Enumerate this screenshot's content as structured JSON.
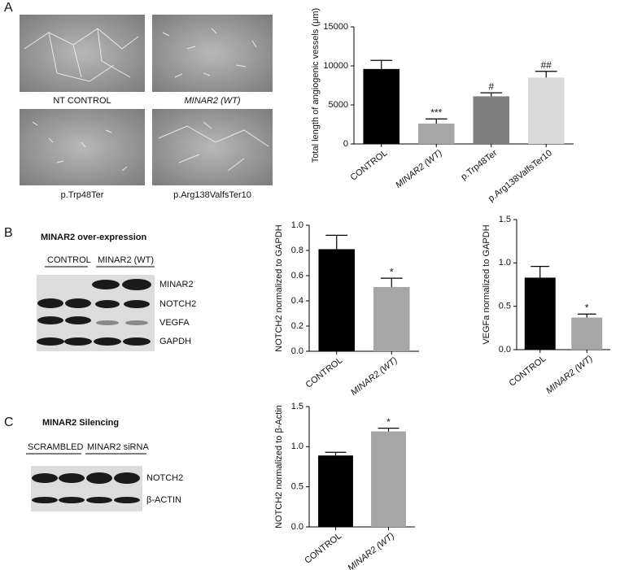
{
  "panels": [
    "A",
    "B",
    "C"
  ],
  "images": [
    "NT CONTROL",
    "MINAR2 (WT)",
    "p.Trp48Ter",
    "p.Arg138ValfsTer10"
  ],
  "blot_b": {
    "title": "MINAR2 over-expression",
    "groups": [
      "CONTROL",
      "MINAR2 (WT)"
    ],
    "rows": [
      "MINAR2",
      "NOTCH2",
      "VEGFA",
      "GAPDH"
    ]
  },
  "blot_c": {
    "title": "MINAR2 Silencing",
    "groups": [
      "SCRAMBLED",
      "MINAR2 siRNA"
    ],
    "rows": [
      "NOTCH2",
      "β-ACTIN"
    ]
  },
  "chart_data": [
    {
      "type": "bar",
      "ylabel": "Total length of angiogenic vessels (μm)",
      "categories": [
        "CONTROL",
        "MINAR2 (WT)",
        "p.Trp48Ter",
        "p.Arg138ValfsTer10"
      ],
      "values": [
        9600,
        2600,
        6100,
        8500
      ],
      "errors": [
        1100,
        600,
        450,
        800
      ],
      "colors": [
        "#000000",
        "#a6a6a6",
        "#7f7f7f",
        "#d9d9d9"
      ],
      "annotations": [
        null,
        "***",
        "#",
        "##"
      ],
      "ylim": [
        0,
        15000
      ],
      "yticks": [
        0,
        5000,
        10000,
        15000
      ]
    },
    {
      "type": "bar",
      "ylabel": "NOTCH2 normalized to GAPDH",
      "categories": [
        "CONTROL",
        "MINAR2 (WT)"
      ],
      "values": [
        0.81,
        0.51
      ],
      "errors": [
        0.11,
        0.07
      ],
      "colors": [
        "#000000",
        "#a6a6a6"
      ],
      "annotations": [
        null,
        "*"
      ],
      "ylim": [
        0,
        1.0
      ],
      "yticks": [
        {
          "value": 0,
          "label": "0.0"
        },
        0.2,
        0.4,
        0.6,
        0.8,
        {
          "value": 1,
          "label": "1.0"
        }
      ]
    },
    {
      "type": "bar",
      "ylabel": "VEGFa normalized to GAPDH",
      "categories": [
        "CONTROL",
        "MINAR2 (WT)"
      ],
      "values": [
        0.83,
        0.37
      ],
      "errors": [
        0.13,
        0.04
      ],
      "colors": [
        "#000000",
        "#a6a6a6"
      ],
      "annotations": [
        null,
        "*"
      ],
      "ylim": [
        0,
        1.5
      ],
      "yticks": [
        {
          "value": 0,
          "label": "0.0"
        },
        0.5,
        {
          "value": 1,
          "label": "1.0"
        },
        1.5
      ]
    },
    {
      "type": "bar",
      "ylabel": "NOTCH2 normalized to β-Actin",
      "categories": [
        "CONTROL",
        "MINAR2 (WT)"
      ],
      "values": [
        0.89,
        1.19
      ],
      "errors": [
        0.04,
        0.04
      ],
      "colors": [
        "#000000",
        "#a6a6a6"
      ],
      "annotations": [
        null,
        "*"
      ],
      "ylim": [
        0,
        1.5
      ],
      "yticks": [
        {
          "value": 0,
          "label": "0.0"
        },
        0.5,
        {
          "value": 1,
          "label": "1.0"
        },
        1.5
      ]
    }
  ]
}
